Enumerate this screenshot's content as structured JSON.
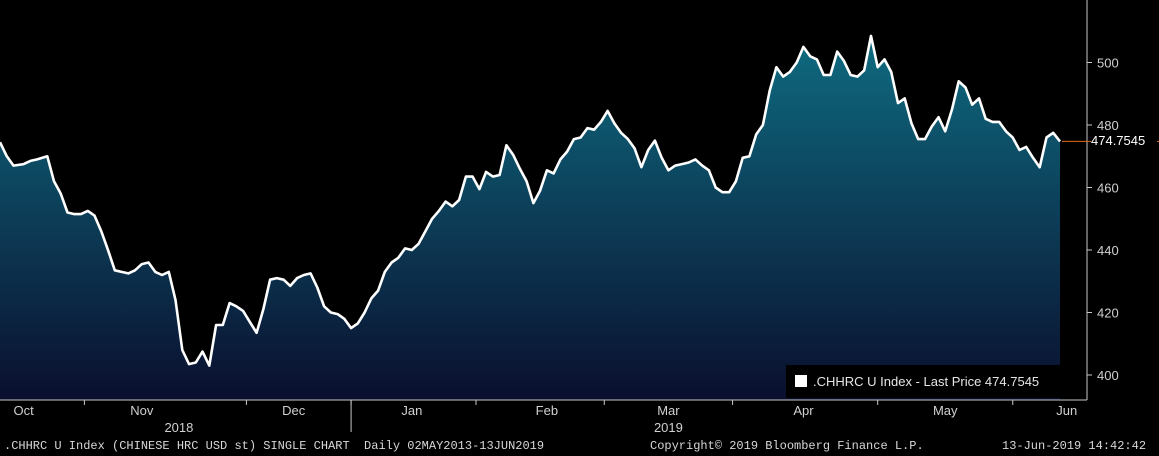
{
  "chart_data": {
    "type": "area",
    "series": [
      {
        "name": ".CHHRC U Index - Last Price",
        "line_color": "#ffffff",
        "fill_top_color": "#0e6b80",
        "fill_bottom_color": "#0a0f2e",
        "points": [
          [
            "2018-09-25",
            474.5
          ],
          [
            "2018-09-27",
            470
          ],
          [
            "2018-09-29",
            467
          ],
          [
            "2018-10-02",
            467.5
          ],
          [
            "2018-10-04",
            468.5
          ],
          [
            "2018-10-06",
            469
          ],
          [
            "2018-10-09",
            470
          ],
          [
            "2018-10-11",
            462
          ],
          [
            "2018-10-13",
            458
          ],
          [
            "2018-10-15",
            452
          ],
          [
            "2018-10-17",
            451.5
          ],
          [
            "2018-10-19",
            451.5
          ],
          [
            "2018-10-21",
            452.5
          ],
          [
            "2018-10-23",
            451
          ],
          [
            "2018-10-25",
            446
          ],
          [
            "2018-10-27",
            440
          ],
          [
            "2018-10-29",
            433.5
          ],
          [
            "2018-10-31",
            433
          ],
          [
            "2018-11-02",
            432.5
          ],
          [
            "2018-11-04",
            433.5
          ],
          [
            "2018-11-06",
            435.5
          ],
          [
            "2018-11-08",
            436
          ],
          [
            "2018-11-10",
            433
          ],
          [
            "2018-11-12",
            432
          ],
          [
            "2018-11-14",
            433
          ],
          [
            "2018-11-16",
            424
          ],
          [
            "2018-11-18",
            408
          ],
          [
            "2018-11-20",
            403.5
          ],
          [
            "2018-11-22",
            404
          ],
          [
            "2018-11-24",
            407.5
          ],
          [
            "2018-11-26",
            403
          ],
          [
            "2018-11-28",
            416
          ],
          [
            "2018-11-30",
            416
          ],
          [
            "2018-12-02",
            423
          ],
          [
            "2018-12-04",
            422
          ],
          [
            "2018-12-06",
            420.5
          ],
          [
            "2018-12-08",
            417
          ],
          [
            "2018-12-10",
            413.5
          ],
          [
            "2018-12-12",
            421
          ],
          [
            "2018-12-14",
            430.5
          ],
          [
            "2018-12-16",
            431
          ],
          [
            "2018-12-18",
            430.5
          ],
          [
            "2018-12-20",
            428.5
          ],
          [
            "2018-12-22",
            431
          ],
          [
            "2018-12-24",
            432
          ],
          [
            "2018-12-26",
            432.5
          ],
          [
            "2018-12-28",
            428
          ],
          [
            "2018-12-30",
            422
          ],
          [
            "2019-01-01",
            420
          ],
          [
            "2019-01-03",
            419.5
          ],
          [
            "2019-01-05",
            418
          ],
          [
            "2019-01-07",
            415
          ],
          [
            "2019-01-09",
            416.5
          ],
          [
            "2019-01-11",
            420
          ],
          [
            "2019-01-13",
            424.5
          ],
          [
            "2019-01-15",
            427
          ],
          [
            "2019-01-17",
            433
          ],
          [
            "2019-01-19",
            436
          ],
          [
            "2019-01-21",
            437.5
          ],
          [
            "2019-01-23",
            440.5
          ],
          [
            "2019-01-25",
            440
          ],
          [
            "2019-01-27",
            442
          ],
          [
            "2019-01-29",
            446
          ],
          [
            "2019-01-31",
            450
          ],
          [
            "2019-02-02",
            452.5
          ],
          [
            "2019-02-04",
            455.5
          ],
          [
            "2019-02-06",
            454
          ],
          [
            "2019-02-08",
            456
          ],
          [
            "2019-02-10",
            463.5
          ],
          [
            "2019-02-12",
            463.5
          ],
          [
            "2019-02-14",
            459.5
          ],
          [
            "2019-02-16",
            465
          ],
          [
            "2019-02-18",
            463.5
          ],
          [
            "2019-02-20",
            464
          ],
          [
            "2019-02-22",
            473.5
          ],
          [
            "2019-02-24",
            470.5
          ],
          [
            "2019-02-26",
            466
          ],
          [
            "2019-02-28",
            462
          ],
          [
            "2019-03-02",
            455
          ],
          [
            "2019-03-04",
            459
          ],
          [
            "2019-03-06",
            465.5
          ],
          [
            "2019-03-08",
            464.5
          ],
          [
            "2019-03-10",
            469
          ],
          [
            "2019-03-12",
            471.5
          ],
          [
            "2019-03-14",
            475.5
          ],
          [
            "2019-03-16",
            476
          ],
          [
            "2019-03-18",
            479
          ],
          [
            "2019-03-20",
            478.5
          ],
          [
            "2019-03-22",
            481
          ],
          [
            "2019-03-24",
            484.5
          ],
          [
            "2019-03-26",
            480.5
          ],
          [
            "2019-03-28",
            477.5
          ],
          [
            "2019-03-30",
            475.5
          ],
          [
            "2019-04-01",
            472.5
          ],
          [
            "2019-04-03",
            466.5
          ],
          [
            "2019-04-05",
            472
          ],
          [
            "2019-04-07",
            475
          ],
          [
            "2019-04-09",
            469.5
          ],
          [
            "2019-04-11",
            465.5
          ],
          [
            "2019-04-13",
            467
          ],
          [
            "2019-04-15",
            467.5
          ],
          [
            "2019-04-17",
            468
          ],
          [
            "2019-04-19",
            469
          ],
          [
            "2019-04-21",
            467
          ],
          [
            "2019-04-23",
            465.5
          ],
          [
            "2019-04-25",
            460
          ],
          [
            "2019-04-27",
            458.5
          ],
          [
            "2019-04-29",
            458.5
          ],
          [
            "2019-05-01",
            462
          ],
          [
            "2019-05-03",
            469.5
          ],
          [
            "2019-05-05",
            470
          ],
          [
            "2019-05-07",
            477
          ],
          [
            "2019-05-09",
            480
          ],
          [
            "2019-05-11",
            491
          ],
          [
            "2019-05-13",
            498.5
          ],
          [
            "2019-05-15",
            495.5
          ],
          [
            "2019-05-17",
            497
          ],
          [
            "2019-05-19",
            500
          ],
          [
            "2019-05-21",
            505
          ],
          [
            "2019-05-23",
            502
          ],
          [
            "2019-05-25",
            501
          ],
          [
            "2019-05-27",
            496
          ],
          [
            "2019-05-29",
            496
          ],
          [
            "2019-05-31",
            503.5
          ],
          [
            "2019-06-02",
            500.5
          ],
          [
            "2019-06-04",
            496
          ],
          [
            "2019-06-06",
            495.5
          ],
          [
            "2019-06-08",
            497.5
          ],
          [
            "2019-06-10",
            508.5
          ],
          [
            "2019-06-12",
            498.5
          ],
          [
            "2019-06-14",
            501
          ],
          [
            "2019-06-16",
            497
          ],
          [
            "2019-06-18",
            487
          ],
          [
            "2019-06-20",
            488.5
          ],
          [
            "2019-06-22",
            480.5
          ],
          [
            "2019-06-24",
            475.5
          ],
          [
            "2019-06-26",
            475.5
          ],
          [
            "2019-06-28",
            479.5
          ],
          [
            "2019-06-30",
            482.5
          ],
          [
            "2019-07-02",
            478
          ],
          [
            "2019-07-04",
            485
          ],
          [
            "2019-07-06",
            494
          ],
          [
            "2019-07-08",
            492
          ],
          [
            "2019-07-10",
            486.5
          ],
          [
            "2019-07-12",
            488.5
          ],
          [
            "2019-07-14",
            482
          ],
          [
            "2019-07-16",
            481
          ],
          [
            "2019-07-18",
            481
          ],
          [
            "2019-07-20",
            478
          ],
          [
            "2019-07-22",
            476
          ],
          [
            "2019-07-24",
            472
          ],
          [
            "2019-07-26",
            473
          ],
          [
            "2019-07-28",
            469.5
          ],
          [
            "2019-07-30",
            466.5
          ],
          [
            "2019-08-01",
            476
          ],
          [
            "2019-08-03",
            477.5
          ],
          [
            "2019-08-05",
            474.7545
          ]
        ]
      }
    ],
    "y_ticks": [
      "400",
      "420",
      "440",
      "460",
      "480",
      "500"
    ],
    "ylim": [
      392,
      520
    ],
    "x_tick_labels": [
      "Oct",
      "Nov",
      "Dec",
      "Jan",
      "Feb",
      "Mar",
      "Apr",
      "May",
      "Jun"
    ],
    "x_tick_label_dates": [
      "2018-10-02",
      "2018-11-06",
      "2018-12-21",
      "2019-01-25",
      "2019-03-06",
      "2019-04-11",
      "2019-05-21",
      "2019-07-02",
      "2019-08-07"
    ],
    "x_boundary_dates": [
      "2018-09-15",
      "2018-10-20",
      "2018-12-07",
      "2019-01-07",
      "2019-02-13",
      "2019-03-23",
      "2019-04-30",
      "2019-06-12",
      "2019-07-22",
      "2019-08-13"
    ],
    "year_labels": [
      {
        "label": "2018",
        "date": "2018-11-17"
      },
      {
        "label": "2019",
        "date": "2019-04-11"
      }
    ],
    "year_divider_date": "2019-01-07",
    "last_value_label": "474.7545",
    "legend_position": "bottom-right",
    "grid": false
  },
  "legend": {
    "text": ".CHHRC U Index - Last Price 474.7545",
    "swatch_color": "#ffffff"
  },
  "footer": {
    "left": ".CHHRC U Index (CHINESE HRC USD st) SINGLE CHART  Daily 02MAY2013-13JUN2019",
    "center": "Copyright© 2019 Bloomberg Finance L.P.",
    "right": "13-Jun-2019 14:42:42"
  },
  "colors": {
    "background": "#000000",
    "axis": "#c8c8c8",
    "last_price_marker": "#e06a1a"
  }
}
